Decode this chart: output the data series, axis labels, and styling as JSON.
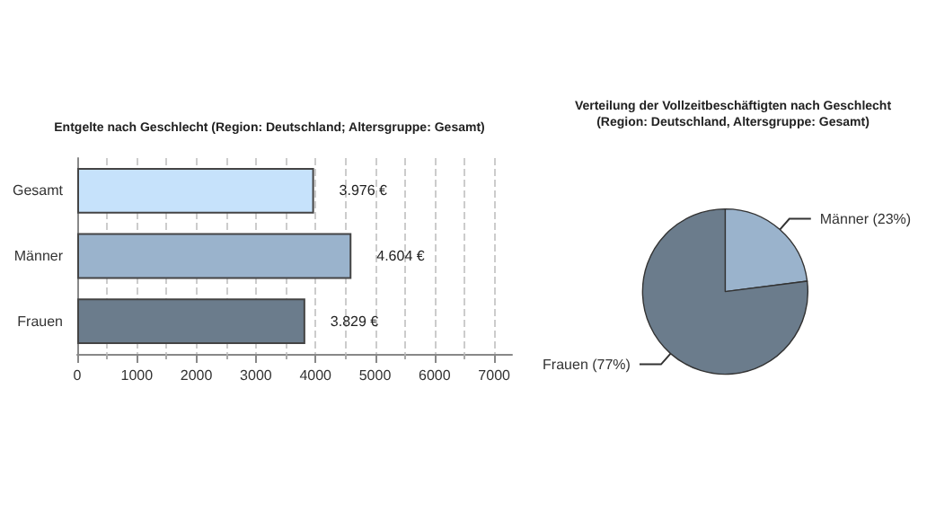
{
  "chart_data": [
    {
      "type": "bar",
      "orientation": "horizontal",
      "title": "Entgelte nach Geschlecht (Region: Deutschland; Altersgruppe: Gesamt)",
      "categories": [
        "Gesamt",
        "Männer",
        "Frauen"
      ],
      "values": [
        3976,
        4604,
        3829
      ],
      "colors": [
        "#c6e2fb",
        "#9ab3cc",
        "#6b7c8c"
      ],
      "value_labels": [
        "3.976 €",
        "4.604 €",
        "3.829 €"
      ],
      "xlim": [
        0,
        7300
      ],
      "xticks": [
        0,
        1000,
        2000,
        3000,
        4000,
        5000,
        6000,
        7000
      ],
      "grid": "x",
      "legend": false
    },
    {
      "type": "pie",
      "title": "Verteilung der Vollzeitbeschäftigten nach Geschlecht",
      "subtitle": "(Region: Deutschland, Altersgruppe: Gesamt)",
      "categories": [
        "Männer (23%)",
        "Frauen (77%)"
      ],
      "values": [
        23,
        77
      ],
      "colors": [
        "#9ab3cc",
        "#6b7c8c"
      ],
      "legend": false
    }
  ]
}
